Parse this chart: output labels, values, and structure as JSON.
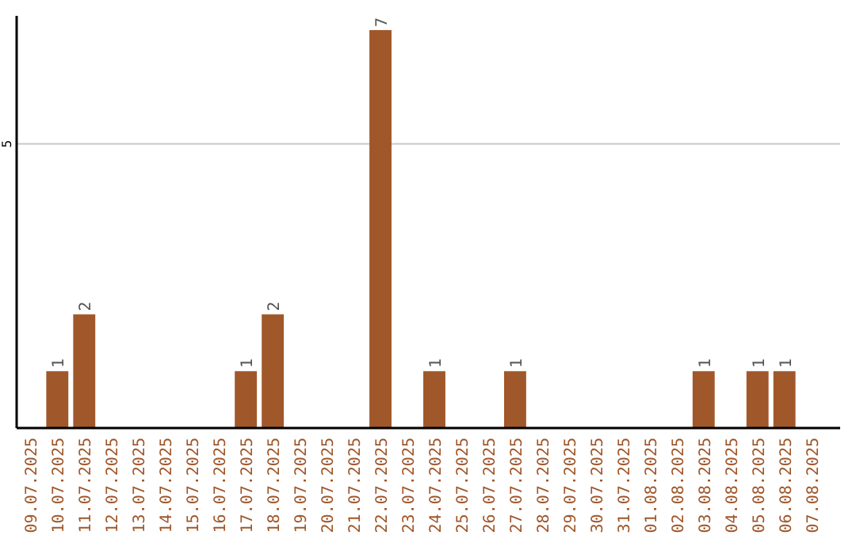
{
  "chart_data": {
    "type": "bar",
    "categories": [
      "09.07.2025",
      "10.07.2025",
      "11.07.2025",
      "12.07.2025",
      "13.07.2025",
      "14.07.2025",
      "15.07.2025",
      "16.07.2025",
      "17.07.2025",
      "18.07.2025",
      "19.07.2025",
      "20.07.2025",
      "21.07.2025",
      "22.07.2025",
      "23.07.2025",
      "24.07.2025",
      "25.07.2025",
      "26.07.2025",
      "27.07.2025",
      "28.07.2025",
      "29.07.2025",
      "30.07.2025",
      "31.07.2025",
      "01.08.2025",
      "02.08.2025",
      "03.08.2025",
      "04.08.2025",
      "05.08.2025",
      "06.08.2025",
      "07.08.2025"
    ],
    "values": [
      0,
      1,
      2,
      0,
      0,
      0,
      0,
      0,
      1,
      2,
      0,
      0,
      0,
      7,
      0,
      1,
      0,
      0,
      1,
      0,
      0,
      0,
      0,
      0,
      0,
      1,
      0,
      1,
      1,
      0
    ],
    "color": "#a0572a",
    "ylim": [
      0,
      7.25
    ],
    "yticks": [
      5
    ],
    "grid": "y",
    "value_labels": [
      null,
      "1",
      "2",
      null,
      null,
      null,
      null,
      null,
      "1",
      "2",
      null,
      null,
      null,
      "7",
      null,
      "1",
      null,
      null,
      "1",
      null,
      null,
      null,
      null,
      null,
      null,
      "1",
      null,
      "1",
      "1",
      null
    ]
  }
}
